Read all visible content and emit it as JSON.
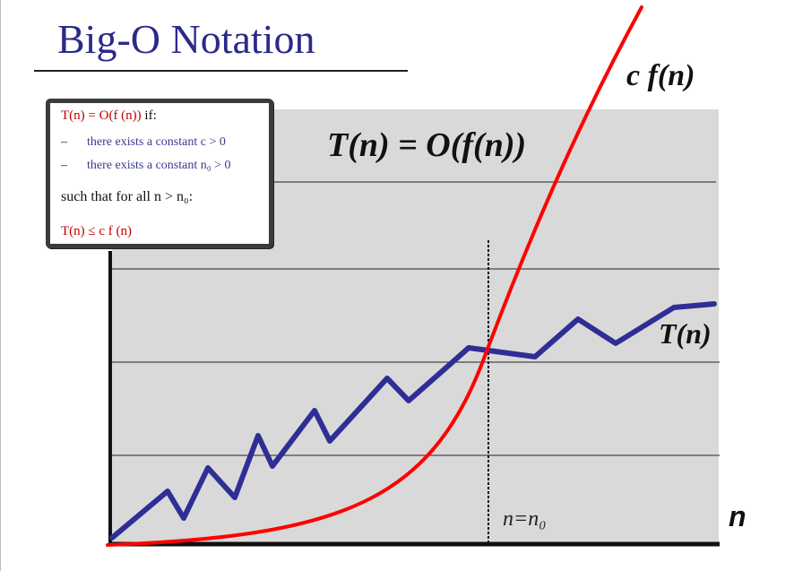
{
  "slide": {
    "title": "Big-O Notation"
  },
  "definition": {
    "heading_math": "T(n) = O(f (n))",
    "heading_suffix": " if:",
    "bullets": [
      {
        "dash": "–",
        "text": "there exists a constant c > 0"
      },
      {
        "dash": "–",
        "text": "there exists a constant n₀ > 0"
      }
    ],
    "condition": "such that for all n > n₀:",
    "result": "T(n) ≤ c f (n)"
  },
  "diagram": {
    "main_label": "T(n) = O(f(n))",
    "curve_label_cf": "c f(n)",
    "curve_label_t": "T(n)",
    "x_axis_label": "n",
    "threshold_label": "n=n₀",
    "colors": {
      "plot_background": "#d9d9d9",
      "cf_curve": "#ff0000",
      "t_curve": "#2e2e96",
      "title": "#2b2a8a",
      "axis": "#111111"
    }
  }
}
